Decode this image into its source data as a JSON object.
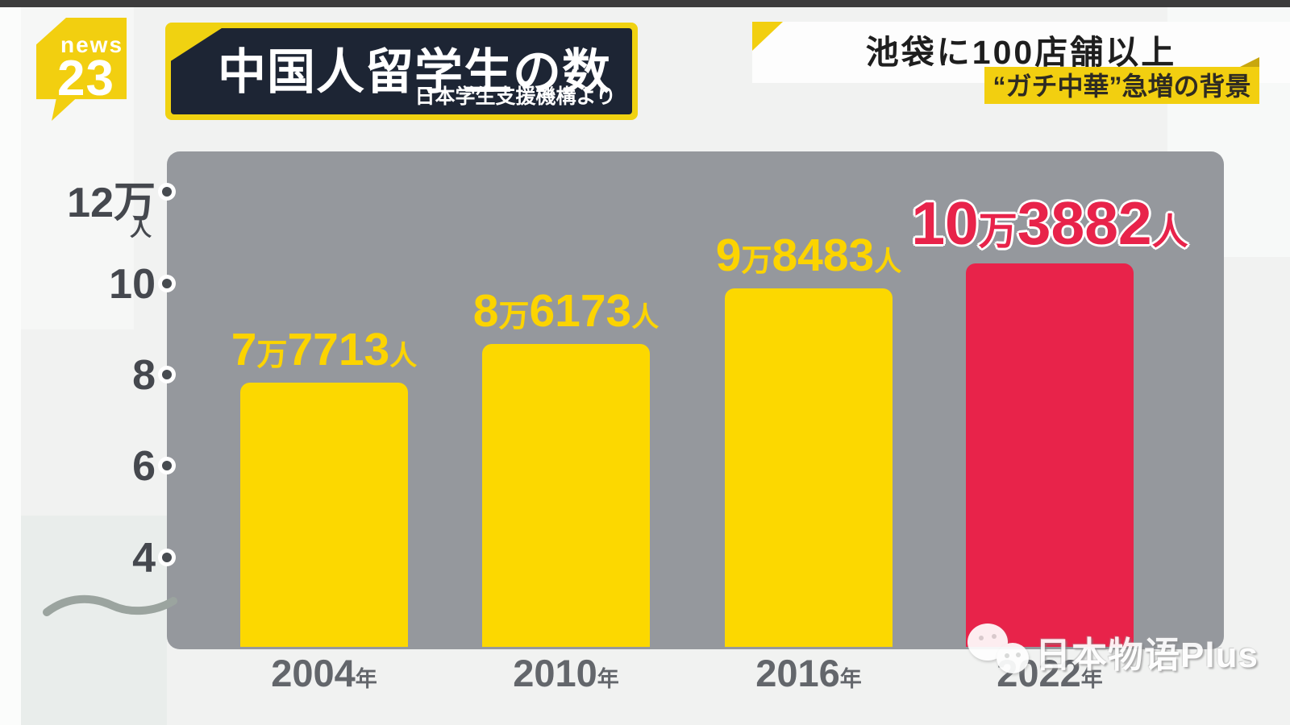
{
  "header": {
    "logo_line1": "news",
    "logo_line2": "23",
    "title": "中国人留学生の数",
    "source": "日本学生支援機構より",
    "banner_top": "池袋に100店舗以上",
    "banner_bottom": "“ガチ中華”急増の背景"
  },
  "chart_data": {
    "type": "bar",
    "title": "中国人留学生の数",
    "source": "日本学生支援機構より",
    "categories": [
      "2004年",
      "2010年",
      "2016年",
      "2022年"
    ],
    "values": [
      77713,
      86173,
      98483,
      103882
    ],
    "unit": "人",
    "axis": {
      "ytick_labels": [
        "12万",
        "10",
        "8",
        "6",
        "4"
      ],
      "ytick_values": [
        120000,
        100000,
        80000,
        60000,
        40000
      ],
      "ytick_unit": "人",
      "baseline_value": 20000,
      "axis_break": true,
      "grid": false
    },
    "value_labels": [
      {
        "big": "7",
        "man": "万",
        "rest": "7713",
        "unit": "人"
      },
      {
        "big": "8",
        "man": "万",
        "rest": "6173",
        "unit": "人"
      },
      {
        "big": "9",
        "man": "万",
        "rest": "8483",
        "unit": "人"
      },
      {
        "big": "10",
        "man": "万",
        "rest": "3882",
        "unit": "人"
      }
    ],
    "x_labels": [
      {
        "year": "2004",
        "suffix": "年"
      },
      {
        "year": "2010",
        "suffix": "年"
      },
      {
        "year": "2016",
        "suffix": "年"
      },
      {
        "year": "2022",
        "suffix": "年"
      }
    ],
    "bar_colors": [
      "#fcd800",
      "#fcd800",
      "#fcd800",
      "#e8234a"
    ],
    "highlight_index": 3,
    "legend_position": "none"
  },
  "watermark": {
    "text": "日本物语Plus",
    "icon": "wechat-icon"
  },
  "colors": {
    "bar_yellow": "#fcd800",
    "bar_red": "#e8234a",
    "panel_gray": "#95989d",
    "banner_navy": "#1d2534",
    "accent_yellow": "#f2cf10",
    "top_strip": "#3c3c3c"
  }
}
